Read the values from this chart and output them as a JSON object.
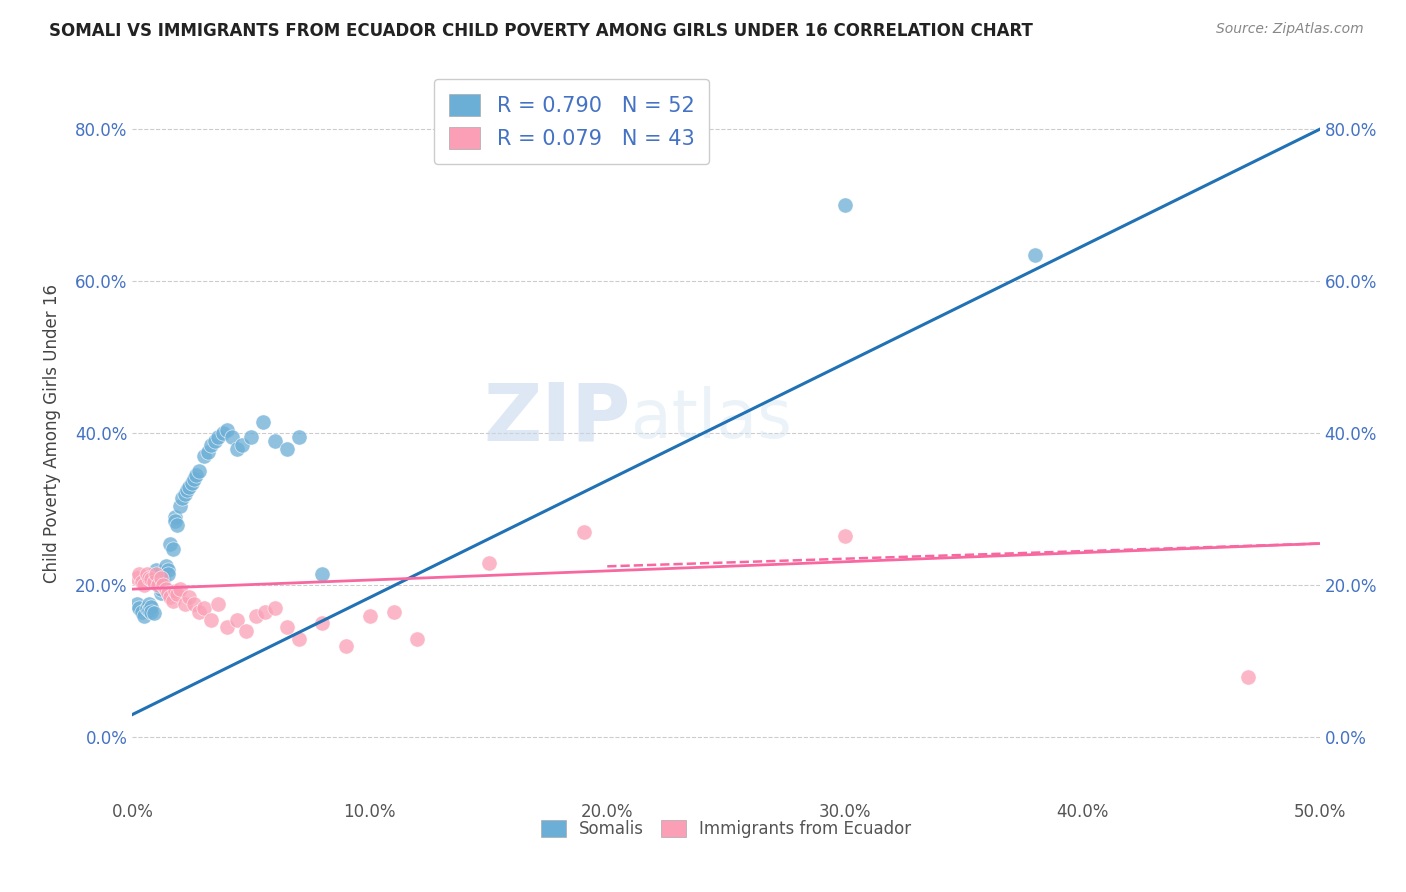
{
  "title": "SOMALI VS IMMIGRANTS FROM ECUADOR CHILD POVERTY AMONG GIRLS UNDER 16 CORRELATION CHART",
  "source": "Source: ZipAtlas.com",
  "ylabel": "Child Poverty Among Girls Under 16",
  "xlim": [
    0.0,
    0.5
  ],
  "ylim": [
    -0.08,
    0.88
  ],
  "x_ticks": [
    0.0,
    0.1,
    0.2,
    0.3,
    0.4,
    0.5
  ],
  "x_tick_labels": [
    "0.0%",
    "10.0%",
    "20.0%",
    "30.0%",
    "40.0%",
    "50.0%"
  ],
  "y_ticks": [
    0.0,
    0.2,
    0.4,
    0.6,
    0.8
  ],
  "y_tick_labels": [
    "0.0%",
    "20.0%",
    "40.0%",
    "60.0%",
    "80.0%"
  ],
  "somali_color": "#6baed6",
  "ecuador_color": "#fa9fb5",
  "line_somali_color": "#2171b5",
  "line_ecuador_color": "#f768a1",
  "tick_color": "#4472c4",
  "watermark_zip": "ZIP",
  "watermark_atlas": "atlas",
  "R_somali": 0.79,
  "N_somali": 52,
  "R_ecuador": 0.079,
  "N_ecuador": 43,
  "somali_x": [
    0.002,
    0.003,
    0.004,
    0.005,
    0.006,
    0.007,
    0.007,
    0.008,
    0.008,
    0.009,
    0.01,
    0.01,
    0.011,
    0.012,
    0.012,
    0.013,
    0.013,
    0.014,
    0.015,
    0.015,
    0.016,
    0.017,
    0.018,
    0.018,
    0.019,
    0.02,
    0.021,
    0.022,
    0.023,
    0.024,
    0.025,
    0.026,
    0.027,
    0.028,
    0.03,
    0.032,
    0.033,
    0.035,
    0.036,
    0.038,
    0.04,
    0.042,
    0.044,
    0.046,
    0.05,
    0.055,
    0.06,
    0.065,
    0.07,
    0.08,
    0.3,
    0.38
  ],
  "somali_y": [
    0.175,
    0.17,
    0.165,
    0.16,
    0.17,
    0.175,
    0.168,
    0.172,
    0.165,
    0.163,
    0.215,
    0.22,
    0.2,
    0.19,
    0.195,
    0.21,
    0.205,
    0.225,
    0.22,
    0.215,
    0.255,
    0.248,
    0.29,
    0.285,
    0.28,
    0.305,
    0.315,
    0.32,
    0.325,
    0.33,
    0.335,
    0.34,
    0.345,
    0.35,
    0.37,
    0.375,
    0.385,
    0.39,
    0.395,
    0.4,
    0.405,
    0.395,
    0.38,
    0.385,
    0.395,
    0.415,
    0.39,
    0.38,
    0.395,
    0.215,
    0.7,
    0.635
  ],
  "ecuador_x": [
    0.002,
    0.003,
    0.004,
    0.005,
    0.006,
    0.007,
    0.008,
    0.009,
    0.01,
    0.011,
    0.012,
    0.013,
    0.014,
    0.015,
    0.016,
    0.017,
    0.018,
    0.019,
    0.02,
    0.022,
    0.024,
    0.026,
    0.028,
    0.03,
    0.033,
    0.036,
    0.04,
    0.044,
    0.048,
    0.052,
    0.056,
    0.06,
    0.065,
    0.07,
    0.08,
    0.09,
    0.1,
    0.11,
    0.12,
    0.15,
    0.19,
    0.3,
    0.47
  ],
  "ecuador_y": [
    0.21,
    0.215,
    0.205,
    0.2,
    0.215,
    0.21,
    0.208,
    0.205,
    0.215,
    0.2,
    0.21,
    0.2,
    0.195,
    0.19,
    0.185,
    0.18,
    0.192,
    0.188,
    0.195,
    0.175,
    0.185,
    0.175,
    0.165,
    0.17,
    0.155,
    0.175,
    0.145,
    0.155,
    0.14,
    0.16,
    0.165,
    0.17,
    0.145,
    0.13,
    0.15,
    0.12,
    0.16,
    0.165,
    0.13,
    0.23,
    0.27,
    0.265,
    0.08
  ],
  "somali_line_x": [
    0.0,
    0.5
  ],
  "somali_line_y": [
    0.03,
    0.8
  ],
  "ecuador_line_x": [
    0.0,
    0.5
  ],
  "ecuador_line_y": [
    0.195,
    0.255
  ]
}
